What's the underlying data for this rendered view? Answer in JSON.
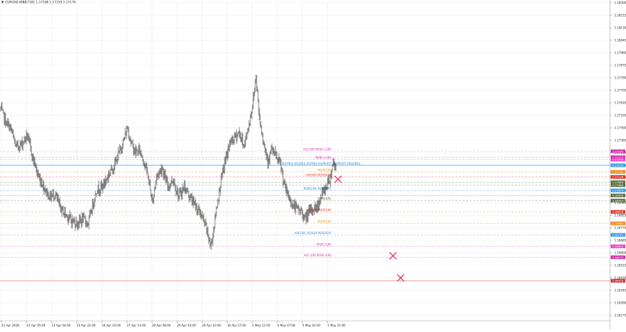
{
  "header": {
    "arrow_glyph": "▼",
    "symbol": "EURUSD,M30",
    "ohlc": "1.17181 1.17188 1.17159 1.17179"
  },
  "colors": {
    "grid": "#e9e9e9",
    "candle": "#1c1c1c",
    "bid_line": "#3d9ce8",
    "axis_text": "#222222",
    "red_line": "#e07a7a",
    "cross": "#e8356b"
  },
  "chart_data": {
    "type": "candlestick",
    "symbol": "EURUSD",
    "timeframe": "M30",
    "ylim": [
      1.16175,
      1.183
    ],
    "y_ticks": [
      "1.18300",
      "1.18215",
      "1.18130",
      "1.18045",
      "1.17960",
      "1.17875",
      "1.17790",
      "1.17705",
      "1.17620",
      "1.17535",
      "1.17450",
      "1.17365",
      "1.17280",
      "1.17195",
      "1.17110",
      "1.17025",
      "1.16940",
      "1.16855",
      "1.16770",
      "1.16685",
      "1.16600",
      "1.16515",
      "1.16430",
      "1.16345",
      "1.16260",
      "1.16175"
    ],
    "x_ticks": [
      "21 Apr 2026",
      "22 Apr 05:00",
      "23 Apr 04:00",
      "23 Apr 22:00",
      "24 Apr 16:00",
      "27 Apr 13:00",
      "28 Apr 08:00",
      "29 Apr 03:00",
      "29 Apr 22:00",
      "30 Apr 17:00",
      "1 May 12:00",
      "4 May 07:00",
      "5 May 02:00",
      "5 May 21:00"
    ],
    "current_price": 1.17195,
    "anchors": [
      [
        0,
        1.1758
      ],
      [
        8,
        1.1748
      ],
      [
        14,
        1.1745
      ],
      [
        22,
        1.1732
      ],
      [
        30,
        1.1734
      ],
      [
        38,
        1.174
      ],
      [
        46,
        1.1725
      ],
      [
        54,
        1.1712
      ],
      [
        62,
        1.1705
      ],
      [
        70,
        1.1698
      ],
      [
        78,
        1.17
      ],
      [
        86,
        1.169
      ],
      [
        94,
        1.1686
      ],
      [
        102,
        1.1682
      ],
      [
        110,
        1.168
      ],
      [
        118,
        1.1683
      ],
      [
        126,
        1.168
      ],
      [
        132,
        1.1692
      ],
      [
        138,
        1.1703
      ],
      [
        146,
        1.1705
      ],
      [
        152,
        1.171
      ],
      [
        158,
        1.1716
      ],
      [
        164,
        1.172
      ],
      [
        170,
        1.1728
      ],
      [
        176,
        1.1735
      ],
      [
        182,
        1.1745
      ],
      [
        188,
        1.1734
      ],
      [
        194,
        1.1728
      ],
      [
        200,
        1.173
      ],
      [
        206,
        1.1722
      ],
      [
        212,
        1.1712
      ],
      [
        218,
        1.1694
      ],
      [
        224,
        1.1712
      ],
      [
        232,
        1.1718
      ],
      [
        240,
        1.1705
      ],
      [
        248,
        1.171
      ],
      [
        256,
        1.1698
      ],
      [
        264,
        1.1705
      ],
      [
        272,
        1.1698
      ],
      [
        280,
        1.1692
      ],
      [
        288,
        1.1686
      ],
      [
        296,
        1.1676
      ],
      [
        302,
        1.1664
      ],
      [
        306,
        1.1676
      ],
      [
        312,
        1.1696
      ],
      [
        318,
        1.1712
      ],
      [
        324,
        1.1725
      ],
      [
        330,
        1.1735
      ],
      [
        336,
        1.1738
      ],
      [
        342,
        1.1742
      ],
      [
        350,
        1.1733
      ],
      [
        356,
        1.1745
      ],
      [
        362,
        1.176
      ],
      [
        367,
        1.178
      ],
      [
        372,
        1.1752
      ],
      [
        378,
        1.1735
      ],
      [
        384,
        1.1723
      ],
      [
        390,
        1.173
      ],
      [
        396,
        1.1725
      ],
      [
        402,
        1.172
      ],
      [
        408,
        1.1705
      ],
      [
        414,
        1.1698
      ],
      [
        420,
        1.1692
      ],
      [
        426,
        1.169
      ],
      [
        432,
        1.1688
      ],
      [
        438,
        1.1683
      ],
      [
        444,
        1.1688
      ],
      [
        450,
        1.169
      ],
      [
        456,
        1.1692
      ],
      [
        462,
        1.17
      ],
      [
        468,
        1.1705
      ],
      [
        474,
        1.1712
      ],
      [
        478,
        1.1722
      ],
      [
        482,
        1.1718
      ]
    ],
    "levels": [
      {
        "price": 1.1729,
        "color": "#e6a3cf",
        "style": "dash",
        "label": "H1[2/8] M30[+2/8]",
        "label_color": "#d030a8",
        "tag": "1.17290",
        "tag_color": "#d030a8"
      },
      {
        "price": 1.1725,
        "color": "#e6a3cf",
        "style": "dash",
        "label": "",
        "label_color": "#d030a8",
        "tag": "1.17250",
        "tag_color": "#d030a8"
      },
      {
        "price": 1.17234,
        "color": "#f08ad8",
        "style": "dash",
        "label": "M30[+1/8]",
        "label_color": "#d030a8",
        "tag": "1.17234",
        "tag_color": "#ea40c9"
      },
      {
        "price": 1.17195,
        "color": "#3d9ce8",
        "style": "solid",
        "label": "W1/RES W1/RES D7/RES H4/PIVOT H4/PIVOT M30/RES",
        "label_color": "#2d86d8",
        "tag": "1.17195",
        "tag_color": "#3d9ce8"
      },
      {
        "price": 1.1715,
        "color": "#f4b774",
        "style": "dash",
        "label": "M30[7/8]",
        "label_color": "#f08a1a",
        "tag": "1.17150",
        "tag_color": "#f08a1a"
      },
      {
        "price": 1.17116,
        "color": "#ef9b93",
        "style": "dash",
        "label": "H4[6/8] M30[6/8]",
        "label_color": "#e0382a",
        "tag": "1.17116",
        "tag_color": "#e0382a"
      },
      {
        "price": 1.1708,
        "color": "#9fb193",
        "style": "dash",
        "label": "",
        "label_color": "#5c7040",
        "tag": "1.17080",
        "tag_color": "#5c7040"
      },
      {
        "price": 1.1706,
        "color": "#9fb193",
        "style": "dash",
        "label": "",
        "label_color": "#5c7040",
        "tag": "1.17060",
        "tag_color": "#5c7040"
      },
      {
        "price": 1.17024,
        "color": "#9cc2ea",
        "style": "dash",
        "label": "M30[2/8] SUPPORT",
        "label_color": "#2d86d8",
        "tag": "1.17024",
        "tag_color": "#3d9ce8"
      },
      {
        "price": 1.1699,
        "color": "#9fb193",
        "style": "dash",
        "label": "",
        "label_color": "#5c7040",
        "tag": "1.16990",
        "tag_color": "#5c7040"
      },
      {
        "price": 1.16955,
        "color": "#9fb193",
        "style": "dash",
        "label": "M30[4/8]",
        "label_color": "#5c7040",
        "tag": "1.16955",
        "tag_color": "#5c7040"
      },
      {
        "price": 1.16878,
        "color": "#ef9b93",
        "style": "dash",
        "label": "H1[1/8] M30[2/8]",
        "label_color": "#e0382a",
        "tag": "1.16878",
        "tag_color": "#e0382a"
      },
      {
        "price": 1.168,
        "color": "#f4b774",
        "style": "dash",
        "label": "M30[1/8]",
        "label_color": "#f08a1a",
        "tag": "1.16800",
        "tag_color": "#f08a1a"
      },
      {
        "price": 1.16722,
        "color": "#9cc2ea",
        "style": "dash",
        "label": "H4[2/8] H1/SUP M30/SUP",
        "label_color": "#2d86d8",
        "tag": "1.16722",
        "tag_color": "#3d9ce8"
      },
      {
        "price": 1.16644,
        "color": "#f08ad8",
        "style": "dash",
        "label": "M30[-1/8]",
        "label_color": "#d030a8",
        "tag": "1.16644",
        "tag_color": "#ea40c9"
      },
      {
        "price": 1.1657,
        "color": "#e6a3cf",
        "style": "dash",
        "label": "H1[-1/8] M30[-2/8]",
        "label_color": "#d030a8",
        "tag": "1.16570",
        "tag_color": "#d030a8"
      },
      {
        "price": 1.1641,
        "color": "#e07a7a",
        "style": "solid",
        "label": "",
        "label_color": "#c03030",
        "tag": "1.16410",
        "tag_color": "#d03838"
      }
    ],
    "crosses": [
      {
        "bar": 485,
        "price": 1.171
      },
      {
        "bar": 564,
        "price": 1.1658
      },
      {
        "bar": 575,
        "price": 1.1643
      }
    ]
  }
}
